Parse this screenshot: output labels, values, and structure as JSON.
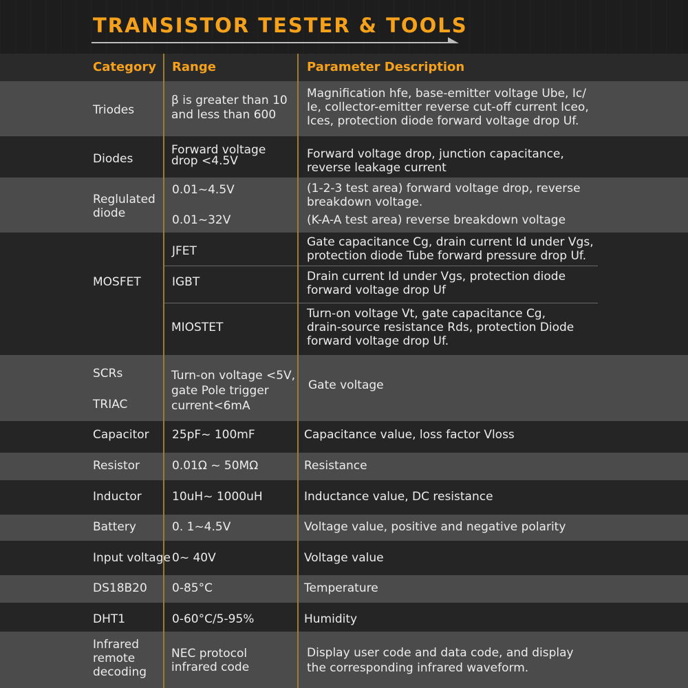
{
  "title": "TRANSISTOR TESTER & TOOLS",
  "header": {
    "category": "Category",
    "range": "Range",
    "description": "Parameter Description"
  },
  "rows": {
    "triodes": {
      "category": "Triodes",
      "range": [
        "β is greater than 10",
        "and less than 600"
      ],
      "desc": [
        "Magnification hfe, base-emitter voltage Ube, Ic/",
        "Ie, collector-emitter reverse cut-off current Iceo,",
        "Ices, protection diode forward voltage drop Uf."
      ]
    },
    "diodes": {
      "category": "Diodes",
      "range": [
        "Forward voltage",
        "drop <4.5V"
      ],
      "desc": [
        "Forward voltage drop, junction capacitance,",
        "reverse leakage current"
      ]
    },
    "regulated": {
      "category": [
        "Reglulated",
        "diode"
      ],
      "range1": "0.01~4.5V",
      "desc1": [
        "(1-2-3 test area) forward voltage drop, reverse",
        "breakdown voltage."
      ],
      "range2": "0.01~32V",
      "desc2": "(K-A-A test area) reverse breakdown voltage"
    },
    "mosfet": {
      "category": "MOSFET",
      "jfet": "JFET",
      "jfet_desc": [
        "Gate capacitance Cg, drain current Id under Vgs,",
        "protection diode Tube forward pressure drop Uf."
      ],
      "igbt": "IGBT",
      "igbt_desc": [
        "Drain current Id under Vgs, protection diode",
        "forward voltage drop Uf"
      ],
      "miostet": "MIOSTET",
      "miostet_desc": [
        "Turn-on voltage Vt, gate capacitance Cg,",
        "drain-source resistance Rds, protection Diode",
        "forward voltage drop Uf."
      ]
    },
    "scr": {
      "category1": "SCRs",
      "category2": "TRIAC",
      "range": [
        "Turn-on voltage <5V,",
        "gate Pole trigger",
        "current<6mA"
      ],
      "desc": "Gate voltage"
    },
    "capacitor": {
      "category": "Capacitor",
      "range": "25pF~ 100mF",
      "desc": "Capacitance value, loss factor Vloss"
    },
    "resistor": {
      "category": "Resistor",
      "range": "0.01Ω ~ 50MΩ",
      "desc": "Resistance"
    },
    "inductor": {
      "category": "Inductor",
      "range": "10uH~ 1000uH",
      "desc": "Inductance value, DC resistance"
    },
    "battery": {
      "category": "Battery",
      "range": "0. 1~4.5V",
      "desc": "Voltage value, positive and negative polarity"
    },
    "input": {
      "category": "Input voltage",
      "range": "0~ 40V",
      "desc": "Voltage value"
    },
    "ds18b20": {
      "category": "DS18B20",
      "range": "0-85°C",
      "desc": "Temperature"
    },
    "dht1": {
      "category": "DHT1",
      "range": "0-60°C/5-95%",
      "desc": "Humidity"
    },
    "infrared": {
      "category": [
        "Infrared",
        "remote",
        "decoding"
      ],
      "range": [
        "NEC protocol",
        "infrared code"
      ],
      "desc": [
        "Display user code and data code, and display",
        "the corresponding infrared waveform."
      ]
    }
  },
  "colors": {
    "accent": "#f5a11c",
    "divider": "#9b7d33"
  }
}
